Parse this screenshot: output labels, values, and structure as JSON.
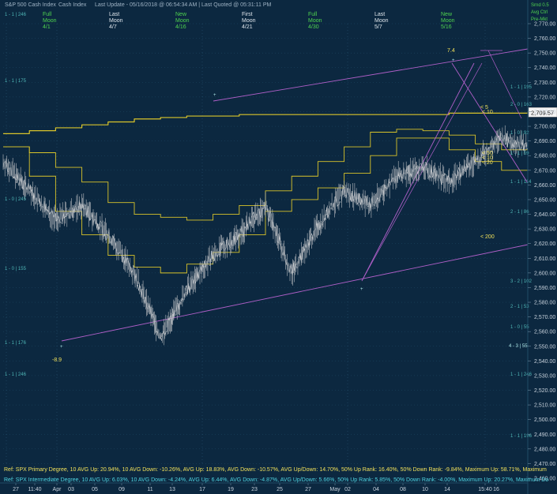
{
  "header": {
    "title": "S&P 500 Cash Index",
    "subtitle": "Cash Index",
    "last_update": "Last Update - 05/16/2018 @ 06:54:34 AM | Last Quoted @ 05:31:11 PM",
    "top_right": [
      "Srnd 0.5",
      "Avg Ctrl",
      "Pre-Mkt"
    ],
    "top_right_value": "0.5",
    "level_top_left": "1 - 1 | 246"
  },
  "moon_phases": [
    {
      "line1": "Full",
      "line2": "Moon",
      "date": "4/1",
      "color": "#4fd34f"
    },
    {
      "line1": "Last",
      "line2": "Moon",
      "date": "4/7",
      "color": "#dfe6ec"
    },
    {
      "line1": "New",
      "line2": "Moon",
      "date": "4/16",
      "color": "#4fd34f"
    },
    {
      "line1": "First",
      "line2": "Moon",
      "date": "4/21",
      "color": "#dfe6ec"
    },
    {
      "line1": "Full",
      "line2": "Moon",
      "date": "4/30",
      "color": "#4fd34f"
    },
    {
      "line1": "Last",
      "line2": "Moon",
      "date": "5/7",
      "color": "#dfe6ec"
    },
    {
      "line1": "New",
      "line2": "Moon",
      "date": "5/16",
      "color": "#4fd34f"
    }
  ],
  "annotations": {
    "high_label": "7.4",
    "low_label": "-8.9",
    "current_price": "2,709.57",
    "ma_labels": [
      "< 5",
      "< 10",
      "< 50",
      "< 10",
      "< 20",
      "< 200"
    ]
  },
  "levels_left": [
    "1 - 1 | 175",
    "1 - 0 | 245",
    "1 - 0 | 155",
    "1 - 1 | 176",
    "1 - 1 | 246",
    "1 - 1 | 246"
  ],
  "levels_right": [
    "1 - 1 | 195",
    "2 - 0 | 163",
    "1 - 0 | 92",
    "1 - 1 | 59",
    "1 - 1 | 114",
    "2 - 1 | 86",
    "3 - 2 | 102",
    "2 - 1 | 53",
    "1 - 0 | 55",
    "4 - 3 | 55",
    "1 - 1 | 246",
    "1 - 1 | 196",
    "1 - 0 | 29"
  ],
  "refs": {
    "primary": "Ref: SPX Primary Degree, 10 AVG Up: 20.94%, 10 AVG Down: -10.26%, AVG Up: 18.83%, AVG Down: -10.57%, AVG Up/Down: 14.70%, 50%  Up Rank: 16.40%, 50% Down Rank: -9.84%, Maximum Up: 58.71%, Maximum",
    "intermediate": "Ref: SPX Intermediate Degree, 10 AVG Up: 6.03%, 10 AVG Down: -4.24%, AVG Up: 6.44%, AVG Down: -4.87%, AVG Up/Down: 5.66%, 50%  Up Rank: 5.85%, 50% Down Rank: -4.00%, Maximum Up: 20.27%, Maximum Do"
  },
  "colors": {
    "background": "#0c2840",
    "price": "#b9bcc0",
    "ma": "#d9c42a",
    "trend": "#b05fc8",
    "grid": "#1f4b66"
  },
  "chart_data": {
    "type": "line",
    "symbol": "SPX",
    "yticks": [
      2460,
      2470,
      2480,
      2490,
      2500,
      2510,
      2520,
      2530,
      2540,
      2550,
      2560,
      2570,
      2580,
      2590,
      2600,
      2610,
      2620,
      2630,
      2640,
      2650,
      2660,
      2670,
      2680,
      2690,
      2700,
      2710,
      2720,
      2730,
      2740,
      2750,
      2760,
      2770
    ],
    "ylim": [
      2455,
      2775
    ],
    "xticks": [
      "27",
      "11:40",
      "Apr",
      "03",
      "05",
      "09",
      "11",
      "13",
      "17",
      "19",
      "23",
      "25",
      "27",
      "May",
      "02",
      "04",
      "08",
      "10",
      "14",
      "15:40",
      "16"
    ],
    "series": [
      {
        "x": [
          0,
          5,
          10,
          15,
          20,
          25,
          30,
          35,
          40,
          45,
          50,
          55,
          60,
          65,
          70,
          75,
          80,
          85,
          90,
          95,
          100
        ],
        "values": [
          2676,
          2656,
          2636,
          2646,
          2626,
          2600,
          2556,
          2588,
          2612,
          2626,
          2646,
          2600,
          2632,
          2656,
          2646,
          2666,
          2672,
          2662,
          2676,
          2692,
          2686
        ]
      }
    ],
    "ma_series": [
      {
        "name": "< 200",
        "values": [
          2695,
          2697,
          2699,
          2701,
          2703,
          2705,
          2706,
          2707,
          2707,
          2708,
          2708,
          2708,
          2708,
          2708,
          2708,
          2708,
          2708,
          2709,
          2709,
          2709,
          2710
        ]
      },
      {
        "name": "< 50",
        "values": [
          2686,
          2682,
          2672,
          2662,
          2648,
          2640,
          2638,
          2636,
          2640,
          2646,
          2656,
          2666,
          2676,
          2686,
          2696,
          2698,
          2697,
          2694,
          2688,
          2684,
          2680
        ]
      },
      {
        "name": "< 20",
        "values": [
          2686,
          2666,
          2642,
          2626,
          2612,
          2604,
          2600,
          2606,
          2614,
          2626,
          2642,
          2650,
          2658,
          2668,
          2680,
          2692,
          2692,
          2684,
          2676,
          2670,
          2664
        ]
      }
    ]
  }
}
